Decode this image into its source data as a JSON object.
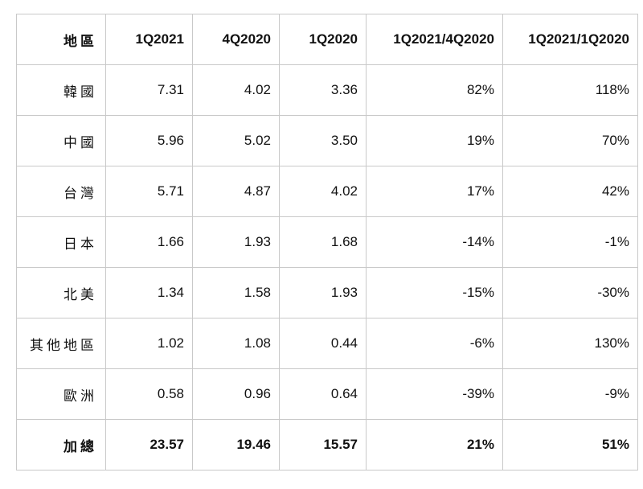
{
  "table": {
    "headers": [
      "地區",
      "1Q2021",
      "4Q2020",
      "1Q2020",
      "1Q2021/4Q2020",
      "1Q2021/1Q2020"
    ],
    "rows": [
      {
        "region": "韓國",
        "q1_2021": "7.31",
        "q4_2020": "4.02",
        "q1_2020": "3.36",
        "qoq": "82%",
        "yoy": "118%"
      },
      {
        "region": "中國",
        "q1_2021": "5.96",
        "q4_2020": "5.02",
        "q1_2020": "3.50",
        "qoq": "19%",
        "yoy": "70%"
      },
      {
        "region": "台灣",
        "q1_2021": "5.71",
        "q4_2020": "4.87",
        "q1_2020": "4.02",
        "qoq": "17%",
        "yoy": "42%"
      },
      {
        "region": "日本",
        "q1_2021": "1.66",
        "q4_2020": "1.93",
        "q1_2020": "1.68",
        "qoq": "-14%",
        "yoy": "-1%"
      },
      {
        "region": "北美",
        "q1_2021": "1.34",
        "q4_2020": "1.58",
        "q1_2020": "1.93",
        "qoq": "-15%",
        "yoy": "-30%"
      },
      {
        "region": "其他地區",
        "q1_2021": "1.02",
        "q4_2020": "1.08",
        "q1_2020": "0.44",
        "qoq": "-6%",
        "yoy": "130%"
      },
      {
        "region": "歐洲",
        "q1_2021": "0.58",
        "q4_2020": "0.96",
        "q1_2020": "0.64",
        "qoq": "-39%",
        "yoy": "-9%"
      }
    ],
    "total": {
      "region": "加總",
      "q1_2021": "23.57",
      "q4_2020": "19.46",
      "q1_2020": "15.57",
      "qoq": "21%",
      "yoy": "51%"
    }
  }
}
